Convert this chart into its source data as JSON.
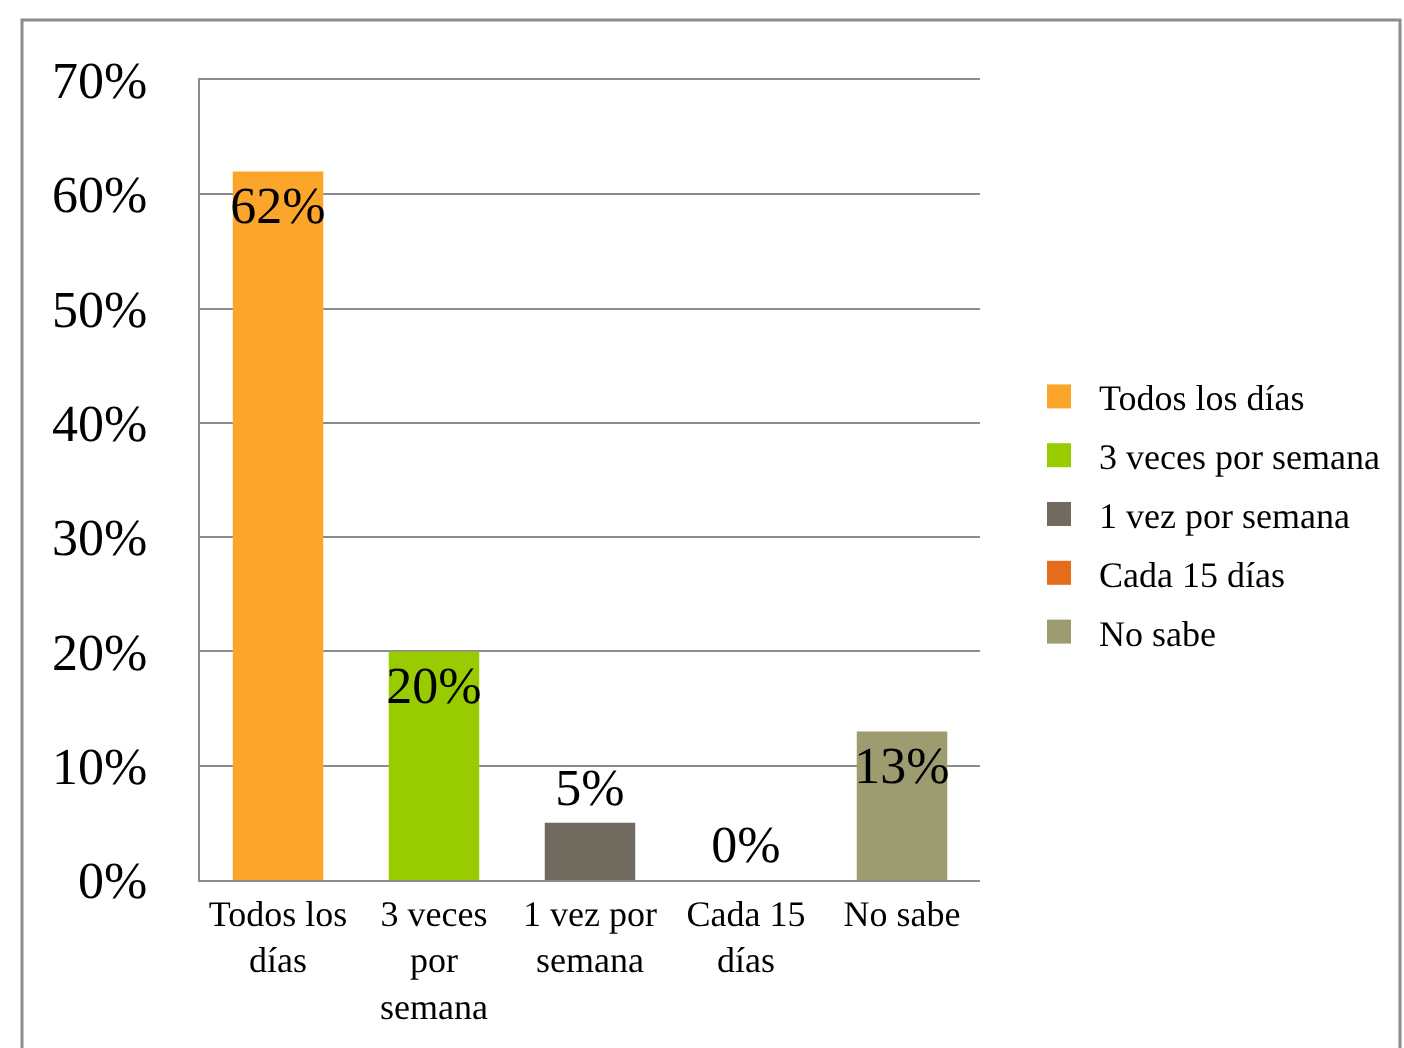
{
  "chart_data": {
    "type": "bar",
    "categories": [
      "Todos los días",
      "3 veces por semana",
      "1 vez por semana",
      "Cada 15 días",
      "No sabe"
    ],
    "series": [
      {
        "name": "Todos los días",
        "color": "#fba52a",
        "values": [
          62,
          null,
          null,
          null,
          null
        ],
        "value_labels": [
          "62%",
          null,
          null,
          null,
          null
        ]
      },
      {
        "name": "3 veces por semana",
        "color": "#99cc00",
        "values": [
          null,
          20,
          null,
          null,
          null
        ],
        "value_labels": [
          null,
          "20%",
          null,
          null,
          null
        ]
      },
      {
        "name": "1 vez por semana",
        "color": "#716a5f",
        "values": [
          null,
          null,
          5,
          null,
          null
        ],
        "value_labels": [
          null,
          null,
          "5%",
          null,
          null
        ]
      },
      {
        "name": "Cada 15 días",
        "color": "#e46c1a",
        "values": [
          null,
          null,
          null,
          0,
          null
        ],
        "value_labels": [
          null,
          null,
          null,
          "0%",
          null
        ]
      },
      {
        "name": "No sabe",
        "color": "#9c9c70",
        "values": [
          null,
          null,
          null,
          null,
          13
        ],
        "value_labels": [
          null,
          null,
          null,
          null,
          "13%"
        ]
      }
    ],
    "ylim": [
      0,
      70
    ],
    "yticks": [
      {
        "value": 0,
        "label": "0%"
      },
      {
        "value": 10,
        "label": "10%"
      },
      {
        "value": 20,
        "label": "20%"
      },
      {
        "value": 30,
        "label": "30%"
      },
      {
        "value": 40,
        "label": "40%"
      },
      {
        "value": 50,
        "label": "50%"
      },
      {
        "value": 60,
        "label": "60%"
      },
      {
        "value": 70,
        "label": "70%"
      }
    ],
    "grid": "y",
    "legend": "right"
  }
}
